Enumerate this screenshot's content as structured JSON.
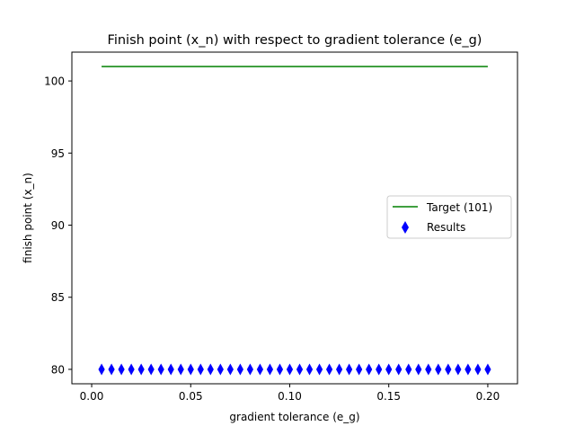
{
  "chart_data": {
    "type": "scatter",
    "title": "Finish point (x_n) with respect to gradient tolerance (e_g)",
    "xlabel": "gradient tolerance (e_g)",
    "ylabel": "finish point (x_n)",
    "xlim": [
      -0.01,
      0.215
    ],
    "ylim": [
      79,
      102
    ],
    "xticks": [
      0.0,
      0.05,
      0.1,
      0.15,
      0.2
    ],
    "xtick_labels": [
      "0.00",
      "0.05",
      "0.10",
      "0.15",
      "0.20"
    ],
    "yticks": [
      80,
      85,
      90,
      95,
      100
    ],
    "ytick_labels": [
      "80",
      "85",
      "90",
      "95",
      "100"
    ],
    "grid": false,
    "legend_position": "center-right",
    "series": [
      {
        "name": "Target (101)",
        "type": "line",
        "color": "#008000",
        "x": [
          0.005,
          0.2
        ],
        "y": [
          101,
          101
        ]
      },
      {
        "name": "Results",
        "type": "scatter",
        "marker": "thin_diamond",
        "color": "#0000ff",
        "x": [
          0.005,
          0.01,
          0.015,
          0.02,
          0.025,
          0.03,
          0.035,
          0.04,
          0.045,
          0.05,
          0.055,
          0.06,
          0.065,
          0.07,
          0.075,
          0.08,
          0.085,
          0.09,
          0.095,
          0.1,
          0.105,
          0.11,
          0.115,
          0.12,
          0.125,
          0.13,
          0.135,
          0.14,
          0.145,
          0.15,
          0.155,
          0.16,
          0.165,
          0.17,
          0.175,
          0.18,
          0.185,
          0.19,
          0.195,
          0.2
        ],
        "y": [
          80,
          80,
          80,
          80,
          80,
          80,
          80,
          80,
          80,
          80,
          80,
          80,
          80,
          80,
          80,
          80,
          80,
          80,
          80,
          80,
          80,
          80,
          80,
          80,
          80,
          80,
          80,
          80,
          80,
          80,
          80,
          80,
          80,
          80,
          80,
          80,
          80,
          80,
          80,
          80
        ]
      }
    ]
  }
}
